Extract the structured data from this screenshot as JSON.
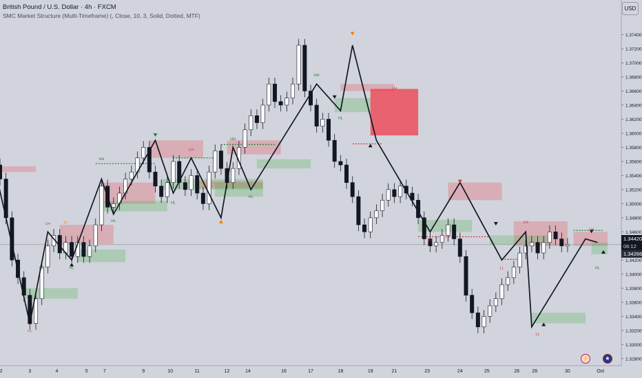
{
  "header": {
    "title": "British Pound / U.S. Dollar · 4h · FXCM",
    "indicator": "SMC Market Structure (Multi-Timeframe) (, Close, 10, 3, Solid, Dotted, MTF)",
    "currency_label": "USD"
  },
  "price_badges": {
    "last": "1.34420",
    "countdown": "06:12",
    "low": "1.34266"
  },
  "icons": {
    "flash": "lightning-icon",
    "flag": "us-flag-icon"
  },
  "colors": {
    "bull": "#ffffff",
    "bear": "#131722",
    "demand_zone": "#4caf50",
    "supply_zone": "#f23645",
    "label_bull": "#1b8a3a",
    "label_bear": "#d32f2f",
    "pivot_orange": "#f57c00",
    "zigzag": "#131722"
  },
  "chart_data": {
    "type": "candlestick",
    "ylim": [
      1.327,
      1.376
    ],
    "xlim": [
      0,
      104
    ],
    "y_ticks": [
      "1.37400",
      "1.37200",
      "1.37000",
      "1.36800",
      "1.36600",
      "1.36400",
      "1.36200",
      "1.36000",
      "1.35800",
      "1.35600",
      "1.35400",
      "1.35200",
      "1.35000",
      "1.34800",
      "1.34600",
      "1.34400",
      "1.34200",
      "1.34000",
      "1.33800",
      "1.33600",
      "1.33400",
      "1.33200",
      "1.33000",
      "1.32800"
    ],
    "x_ticks": [
      {
        "i": 0.2,
        "label": "2"
      },
      {
        "i": 5,
        "label": "3"
      },
      {
        "i": 9.5,
        "label": "4"
      },
      {
        "i": 14.5,
        "label": "5"
      },
      {
        "i": 17.5,
        "label": "7"
      },
      {
        "i": 24,
        "label": "9"
      },
      {
        "i": 28.5,
        "label": "10"
      },
      {
        "i": 33,
        "label": "11"
      },
      {
        "i": 38,
        "label": "12"
      },
      {
        "i": 41.5,
        "label": "14"
      },
      {
        "i": 47.5,
        "label": "16"
      },
      {
        "i": 52,
        "label": "17"
      },
      {
        "i": 57,
        "label": "18"
      },
      {
        "i": 62,
        "label": "19"
      },
      {
        "i": 66,
        "label": "21"
      },
      {
        "i": 71.5,
        "label": "23"
      },
      {
        "i": 77,
        "label": "24"
      },
      {
        "i": 81.5,
        "label": "25"
      },
      {
        "i": 86.5,
        "label": "26"
      },
      {
        "i": 89.5,
        "label": "28"
      },
      {
        "i": 95,
        "label": "30"
      },
      {
        "i": 100.5,
        "label": "Oct"
      }
    ],
    "close": [
      1.3535,
      1.348,
      1.342,
      1.3395,
      1.337,
      1.333,
      1.3365,
      1.341,
      1.344,
      1.3455,
      1.343,
      1.3445,
      1.3425,
      1.3445,
      1.3425,
      1.344,
      1.347,
      1.3525,
      1.3495,
      1.35,
      1.3515,
      1.3535,
      1.3545,
      1.3565,
      1.358,
      1.3545,
      1.3525,
      1.351,
      1.353,
      1.356,
      1.353,
      1.352,
      1.354,
      1.3515,
      1.35,
      1.3545,
      1.3575,
      1.355,
      1.353,
      1.355,
      1.358,
      1.3605,
      1.3625,
      1.3615,
      1.364,
      1.367,
      1.3645,
      1.364,
      1.365,
      1.367,
      1.3725,
      1.366,
      1.364,
      1.361,
      1.362,
      1.359,
      1.356,
      1.3555,
      1.353,
      1.351,
      1.347,
      1.346,
      1.348,
      1.349,
      1.3505,
      1.352,
      1.351,
      1.3525,
      1.3515,
      1.3505,
      1.348,
      1.345,
      1.344,
      1.3445,
      1.3455,
      1.347,
      1.345,
      1.3425,
      1.337,
      1.3345,
      1.3325,
      1.334,
      1.3355,
      1.3365,
      1.3385,
      1.3395,
      1.341,
      1.343,
      1.344,
      1.3445,
      1.343,
      1.3445,
      1.346,
      1.345,
      1.344,
      1.3442
    ],
    "ohlc_start": 1.3555,
    "zigzag": [
      {
        "i": -1,
        "p": 1.3555
      },
      {
        "i": 5,
        "p": 1.333
      },
      {
        "i": 8,
        "p": 1.346
      },
      {
        "i": 12,
        "p": 1.342
      },
      {
        "i": 17,
        "p": 1.3535
      },
      {
        "i": 19,
        "p": 1.3485
      },
      {
        "i": 26,
        "p": 1.359
      },
      {
        "i": 29,
        "p": 1.3515
      },
      {
        "i": 32,
        "p": 1.3565
      },
      {
        "i": 37,
        "p": 1.348
      },
      {
        "i": 39,
        "p": 1.358
      },
      {
        "i": 42,
        "p": 1.352
      },
      {
        "i": 53,
        "p": 1.367
      },
      {
        "i": 57,
        "p": 1.3632
      },
      {
        "i": 59,
        "p": 1.3725
      },
      {
        "i": 63,
        "p": 1.359
      },
      {
        "i": 72,
        "p": 1.346
      },
      {
        "i": 77,
        "p": 1.353
      },
      {
        "i": 84,
        "p": 1.342
      },
      {
        "i": 88,
        "p": 1.346
      },
      {
        "i": 89,
        "p": 1.3325
      },
      {
        "i": 98,
        "p": 1.345
      },
      {
        "i": 100,
        "p": 1.3445
      }
    ],
    "zones": [
      {
        "kind": "supply",
        "i0": -1,
        "i1": 6,
        "p0": 1.3553,
        "p1": 1.3545
      },
      {
        "kind": "demand",
        "i0": 4,
        "i1": 13,
        "p0": 1.338,
        "p1": 1.3365
      },
      {
        "kind": "supply",
        "i0": 10,
        "i1": 19,
        "p0": 1.347,
        "p1": 1.3443
      },
      {
        "kind": "demand",
        "i0": 13,
        "i1": 21,
        "p0": 1.3435,
        "p1": 1.3417
      },
      {
        "kind": "supply",
        "i0": 17,
        "i1": 26,
        "p0": 1.353,
        "p1": 1.35
      },
      {
        "kind": "demand",
        "i0": 17,
        "i1": 28,
        "p0": 1.3504,
        "p1": 1.3489
      },
      {
        "kind": "supply",
        "i0": 25,
        "i1": 34,
        "p0": 1.359,
        "p1": 1.3565
      },
      {
        "kind": "demand",
        "i0": 27,
        "i1": 44,
        "p0": 1.3535,
        "p1": 1.352
      },
      {
        "kind": "supply",
        "i0": 33,
        "i1": 44,
        "p0": 1.3532,
        "p1": 1.3522
      },
      {
        "kind": "demand",
        "i0": 36,
        "i1": 44,
        "p0": 1.353,
        "p1": 1.351
      },
      {
        "kind": "supply",
        "i0": 38,
        "i1": 47,
        "p0": 1.359,
        "p1": 1.357
      },
      {
        "kind": "demand",
        "i0": 43,
        "i1": 52,
        "p0": 1.3563,
        "p1": 1.355
      },
      {
        "kind": "supply",
        "i0": 57,
        "i1": 66,
        "p0": 1.367,
        "p1": 1.366
      },
      {
        "kind": "demand",
        "i0": 56,
        "i1": 62,
        "p0": 1.365,
        "p1": 1.363
      },
      {
        "kind": "bigsupply",
        "i0": 62,
        "i1": 70,
        "p0": 1.3663,
        "p1": 1.3597
      },
      {
        "kind": "demand",
        "i0": 70,
        "i1": 79,
        "p0": 1.3477,
        "p1": 1.346
      },
      {
        "kind": "supply",
        "i0": 75,
        "i1": 84,
        "p0": 1.353,
        "p1": 1.3505
      },
      {
        "kind": "supply",
        "i0": 86,
        "i1": 95,
        "p0": 1.3475,
        "p1": 1.344
      },
      {
        "kind": "demand",
        "i0": 82,
        "i1": 92,
        "p0": 1.3455,
        "p1": 1.3442
      },
      {
        "kind": "demand",
        "i0": 89,
        "i1": 98,
        "p0": 1.3345,
        "p1": 1.333
      },
      {
        "kind": "supply",
        "i0": 96,
        "i1": 105,
        "p0": 1.346,
        "p1": 1.344
      },
      {
        "kind": "demand",
        "i0": 99,
        "i1": 108,
        "p0": 1.3445,
        "p1": 1.3428
      }
    ],
    "levels": [
      {
        "i0": 16,
        "i1": 26,
        "p": 1.3557,
        "color": "#1b8a3a"
      },
      {
        "i0": 29,
        "i1": 36,
        "p": 1.3565,
        "color": "#1b8a3a"
      },
      {
        "i0": 37,
        "i1": 46,
        "p": 1.3584,
        "color": "#1b8a3a"
      },
      {
        "i0": 59,
        "i1": 64,
        "p": 1.3585,
        "color": "#d32f2f"
      },
      {
        "i0": 70,
        "i1": 82,
        "p": 1.3453,
        "color": "#d32f2f"
      },
      {
        "i0": 84,
        "i1": 87,
        "p": 1.3421,
        "color": "#d32f2f"
      },
      {
        "i0": 96,
        "i1": 101,
        "p": 1.3462,
        "color": "#1b8a3a"
      }
    ],
    "structure_labels": [
      {
        "text": "LL",
        "i": 5,
        "p": 1.3318,
        "color": "#d32f2f"
      },
      {
        "text": "LH",
        "i": 8,
        "p": 1.347,
        "color": "#d32f2f"
      },
      {
        "text": "LL",
        "i": 11,
        "p": 1.3472,
        "color": "#f57c00"
      },
      {
        "text": "HL",
        "i": 12,
        "p": 1.3407,
        "color": "#1b8a3a"
      },
      {
        "text": "HL",
        "i": 7,
        "p": 1.3407,
        "color": "#1b8a3a"
      },
      {
        "text": "HH",
        "i": 17,
        "p": 1.3562,
        "color": "#1b8a3a"
      },
      {
        "text": "HL",
        "i": 19,
        "p": 1.3474,
        "color": "#1b8a3a"
      },
      {
        "text": "HL",
        "i": 29,
        "p": 1.35,
        "color": "#1b8a3a"
      },
      {
        "text": "LH",
        "i": 32,
        "p": 1.3575,
        "color": "#d32f2f"
      },
      {
        "text": "HH",
        "i": 39,
        "p": 1.359,
        "color": "#1b8a3a"
      },
      {
        "text": "HL",
        "i": 42,
        "p": 1.3508,
        "color": "#1b8a3a"
      },
      {
        "text": "HH",
        "i": 53,
        "p": 1.3681,
        "color": "#1b8a3a"
      },
      {
        "text": "HL",
        "i": 57,
        "p": 1.362,
        "color": "#1b8a3a"
      },
      {
        "text": "LH",
        "i": 66,
        "p": 1.3662,
        "color": "#d32f2f"
      },
      {
        "text": "LL",
        "i": 72,
        "p": 1.3447,
        "color": "#d32f2f"
      },
      {
        "text": "LL",
        "i": 84,
        "p": 1.3407,
        "color": "#d32f2f"
      },
      {
        "text": "LH",
        "i": 88,
        "p": 1.3472,
        "color": "#d32f2f"
      },
      {
        "text": "LL",
        "i": 90,
        "p": 1.3313,
        "color": "#d32f2f"
      },
      {
        "text": "LH",
        "i": 99,
        "p": 1.3462,
        "color": "#d32f2f"
      },
      {
        "text": "HL",
        "i": 100,
        "p": 1.3407,
        "color": "#1b8a3a"
      }
    ],
    "markers": [
      {
        "i": 5,
        "p": 1.3333,
        "dir": "up",
        "color": "#131722"
      },
      {
        "i": 12,
        "p": 1.3415,
        "dir": "up",
        "color": "#131722"
      },
      {
        "i": 26,
        "p": 1.3596,
        "dir": "down",
        "color": "#1b8a3a"
      },
      {
        "i": 37,
        "p": 1.3476,
        "dir": "up",
        "color": "#f57c00"
      },
      {
        "i": 59,
        "p": 1.374,
        "dir": "down",
        "color": "#f57c00"
      },
      {
        "i": 56,
        "p": 1.365,
        "dir": "down",
        "color": "#131722"
      },
      {
        "i": 62,
        "p": 1.3584,
        "dir": "up",
        "color": "#131722"
      },
      {
        "i": 77,
        "p": 1.353,
        "dir": "down",
        "color": "#d32f2f"
      },
      {
        "i": 83,
        "p": 1.347,
        "dir": "down",
        "color": "#131722"
      },
      {
        "i": 91,
        "p": 1.333,
        "dir": "up",
        "color": "#131722"
      },
      {
        "i": 99,
        "p": 1.3459,
        "dir": "down",
        "color": "#131722"
      },
      {
        "i": 101,
        "p": 1.3433,
        "dir": "up",
        "color": "#131722"
      }
    ]
  }
}
